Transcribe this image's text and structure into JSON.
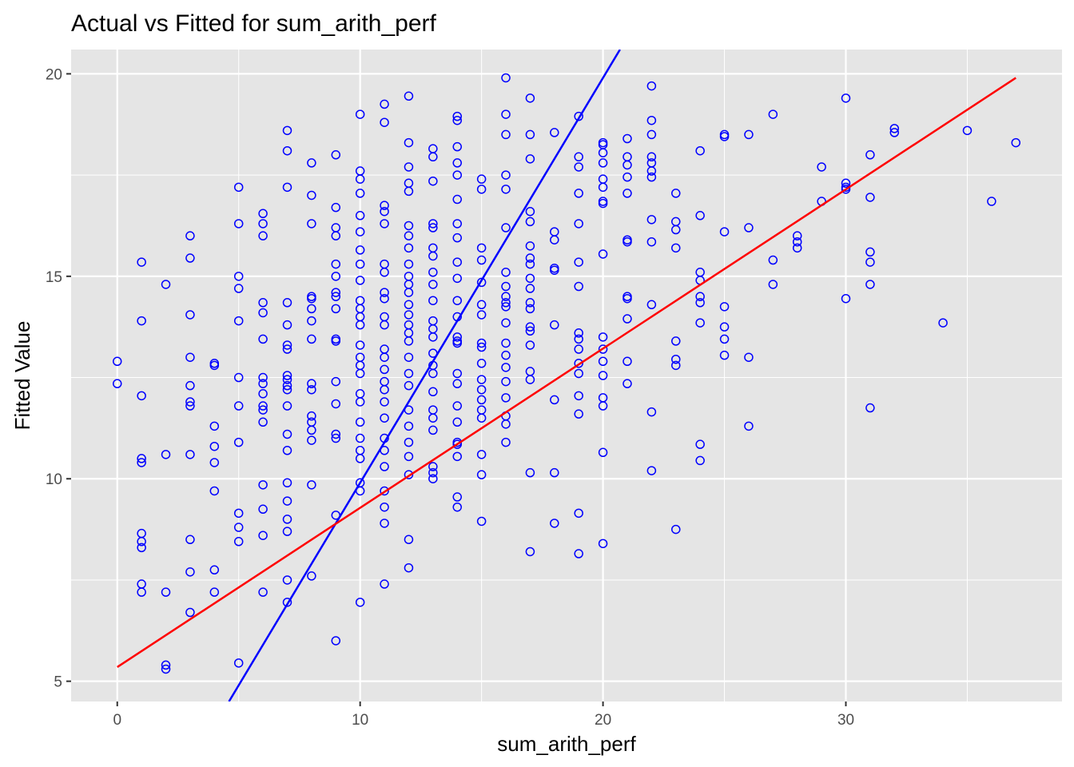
{
  "chart_data": {
    "type": "scatter",
    "title": "Actual vs Fitted for sum_arith_perf",
    "xlabel": "sum_arith_perf",
    "ylabel": "Fitted Value",
    "xlim": [
      -1.9,
      38.9
    ],
    "ylim": [
      4.5,
      20.6
    ],
    "x_ticks": [
      0,
      10,
      20,
      30
    ],
    "y_ticks": [
      5,
      10,
      15,
      20
    ],
    "grid": true,
    "panel_background": "#e5e5e5",
    "grid_color": "#ffffff",
    "point_color": "#0000ff",
    "points": [
      [
        0,
        12.9
      ],
      [
        0,
        12.35
      ],
      [
        1,
        15.35
      ],
      [
        1,
        13.9
      ],
      [
        1,
        12.05
      ],
      [
        1,
        10.5
      ],
      [
        1,
        10.4
      ],
      [
        1,
        8.65
      ],
      [
        1,
        8.45
      ],
      [
        1,
        8.3
      ],
      [
        1,
        7.4
      ],
      [
        1,
        7.2
      ],
      [
        2,
        14.8
      ],
      [
        2,
        10.6
      ],
      [
        2,
        7.2
      ],
      [
        2,
        5.4
      ],
      [
        2,
        5.3
      ],
      [
        3,
        16.0
      ],
      [
        3,
        15.45
      ],
      [
        3,
        14.05
      ],
      [
        3,
        13.0
      ],
      [
        3,
        12.3
      ],
      [
        3,
        11.9
      ],
      [
        3,
        11.8
      ],
      [
        3,
        10.6
      ],
      [
        3,
        8.5
      ],
      [
        3,
        7.7
      ],
      [
        3,
        6.7
      ],
      [
        4,
        12.85
      ],
      [
        4,
        12.8
      ],
      [
        4,
        11.3
      ],
      [
        4,
        10.8
      ],
      [
        4,
        10.4
      ],
      [
        4,
        9.7
      ],
      [
        4,
        7.75
      ],
      [
        4,
        7.2
      ],
      [
        5,
        17.2
      ],
      [
        5,
        16.3
      ],
      [
        5,
        15.0
      ],
      [
        5,
        14.7
      ],
      [
        5,
        13.9
      ],
      [
        5,
        12.5
      ],
      [
        5,
        11.8
      ],
      [
        5,
        10.9
      ],
      [
        5,
        9.15
      ],
      [
        5,
        8.8
      ],
      [
        5,
        8.45
      ],
      [
        5,
        5.45
      ],
      [
        6,
        16.55
      ],
      [
        6,
        16.3
      ],
      [
        6,
        16.0
      ],
      [
        6,
        14.35
      ],
      [
        6,
        14.1
      ],
      [
        6,
        13.45
      ],
      [
        6,
        12.5
      ],
      [
        6,
        12.35
      ],
      [
        6,
        12.1
      ],
      [
        6,
        11.8
      ],
      [
        6,
        11.7
      ],
      [
        6,
        11.4
      ],
      [
        6,
        9.85
      ],
      [
        6,
        9.25
      ],
      [
        6,
        8.6
      ],
      [
        6,
        7.2
      ],
      [
        7,
        18.6
      ],
      [
        7,
        18.1
      ],
      [
        7,
        17.2
      ],
      [
        7,
        14.35
      ],
      [
        7,
        13.8
      ],
      [
        7,
        13.3
      ],
      [
        7,
        13.2
      ],
      [
        7,
        12.55
      ],
      [
        7,
        12.45
      ],
      [
        7,
        12.3
      ],
      [
        7,
        12.2
      ],
      [
        7,
        11.8
      ],
      [
        7,
        11.1
      ],
      [
        7,
        10.7
      ],
      [
        7,
        9.9
      ],
      [
        7,
        9.45
      ],
      [
        7,
        9.0
      ],
      [
        7,
        8.7
      ],
      [
        7,
        7.5
      ],
      [
        7,
        6.95
      ],
      [
        8,
        17.8
      ],
      [
        8,
        17.0
      ],
      [
        8,
        16.3
      ],
      [
        8,
        14.5
      ],
      [
        8,
        14.45
      ],
      [
        8,
        14.2
      ],
      [
        8,
        13.9
      ],
      [
        8,
        13.45
      ],
      [
        8,
        12.35
      ],
      [
        8,
        12.2
      ],
      [
        8,
        11.55
      ],
      [
        8,
        11.4
      ],
      [
        8,
        11.2
      ],
      [
        8,
        10.95
      ],
      [
        8,
        9.85
      ],
      [
        8,
        7.6
      ],
      [
        9,
        18.0
      ],
      [
        9,
        16.7
      ],
      [
        9,
        16.2
      ],
      [
        9,
        16.0
      ],
      [
        9,
        15.3
      ],
      [
        9,
        15.0
      ],
      [
        9,
        14.6
      ],
      [
        9,
        14.5
      ],
      [
        9,
        14.2
      ],
      [
        9,
        13.45
      ],
      [
        9,
        13.4
      ],
      [
        9,
        12.4
      ],
      [
        9,
        11.85
      ],
      [
        9,
        11.1
      ],
      [
        9,
        11.0
      ],
      [
        9,
        9.1
      ],
      [
        9,
        6.0
      ],
      [
        10,
        19.0
      ],
      [
        10,
        17.6
      ],
      [
        10,
        17.4
      ],
      [
        10,
        17.05
      ],
      [
        10,
        16.5
      ],
      [
        10,
        16.1
      ],
      [
        10,
        15.65
      ],
      [
        10,
        15.3
      ],
      [
        10,
        14.9
      ],
      [
        10,
        14.4
      ],
      [
        10,
        14.2
      ],
      [
        10,
        14.0
      ],
      [
        10,
        13.8
      ],
      [
        10,
        13.3
      ],
      [
        10,
        13.0
      ],
      [
        10,
        12.8
      ],
      [
        10,
        12.6
      ],
      [
        10,
        12.1
      ],
      [
        10,
        11.9
      ],
      [
        10,
        11.4
      ],
      [
        10,
        11.0
      ],
      [
        10,
        10.7
      ],
      [
        10,
        10.5
      ],
      [
        10,
        9.9
      ],
      [
        10,
        9.7
      ],
      [
        10,
        6.95
      ],
      [
        11,
        19.25
      ],
      [
        11,
        18.8
      ],
      [
        11,
        16.75
      ],
      [
        11,
        16.6
      ],
      [
        11,
        16.3
      ],
      [
        11,
        15.3
      ],
      [
        11,
        15.1
      ],
      [
        11,
        14.6
      ],
      [
        11,
        14.45
      ],
      [
        11,
        14.0
      ],
      [
        11,
        13.8
      ],
      [
        11,
        13.2
      ],
      [
        11,
        13.0
      ],
      [
        11,
        12.7
      ],
      [
        11,
        12.4
      ],
      [
        11,
        12.2
      ],
      [
        11,
        11.9
      ],
      [
        11,
        11.5
      ],
      [
        11,
        11.0
      ],
      [
        11,
        10.7
      ],
      [
        11,
        10.3
      ],
      [
        11,
        9.7
      ],
      [
        11,
        9.3
      ],
      [
        11,
        8.9
      ],
      [
        11,
        7.4
      ],
      [
        12,
        19.45
      ],
      [
        12,
        18.3
      ],
      [
        12,
        17.7
      ],
      [
        12,
        17.3
      ],
      [
        12,
        17.1
      ],
      [
        12,
        16.25
      ],
      [
        12,
        16.0
      ],
      [
        12,
        15.7
      ],
      [
        12,
        15.3
      ],
      [
        12,
        15.0
      ],
      [
        12,
        14.8
      ],
      [
        12,
        14.6
      ],
      [
        12,
        14.3
      ],
      [
        12,
        14.05
      ],
      [
        12,
        13.8
      ],
      [
        12,
        13.6
      ],
      [
        12,
        13.4
      ],
      [
        12,
        13.0
      ],
      [
        12,
        12.6
      ],
      [
        12,
        12.3
      ],
      [
        12,
        11.7
      ],
      [
        12,
        11.3
      ],
      [
        12,
        10.9
      ],
      [
        12,
        10.55
      ],
      [
        12,
        10.1
      ],
      [
        12,
        8.5
      ],
      [
        12,
        7.8
      ],
      [
        13,
        18.15
      ],
      [
        13,
        17.95
      ],
      [
        13,
        17.35
      ],
      [
        13,
        16.3
      ],
      [
        13,
        16.2
      ],
      [
        13,
        15.7
      ],
      [
        13,
        15.5
      ],
      [
        13,
        15.1
      ],
      [
        13,
        14.8
      ],
      [
        13,
        14.4
      ],
      [
        13,
        13.9
      ],
      [
        13,
        13.7
      ],
      [
        13,
        13.5
      ],
      [
        13,
        13.1
      ],
      [
        13,
        12.8
      ],
      [
        13,
        12.6
      ],
      [
        13,
        12.15
      ],
      [
        13,
        11.7
      ],
      [
        13,
        11.5
      ],
      [
        13,
        11.2
      ],
      [
        13,
        10.3
      ],
      [
        13,
        10.15
      ],
      [
        13,
        10.0
      ],
      [
        14,
        18.95
      ],
      [
        14,
        18.85
      ],
      [
        14,
        18.2
      ],
      [
        14,
        17.8
      ],
      [
        14,
        17.5
      ],
      [
        14,
        16.9
      ],
      [
        14,
        16.3
      ],
      [
        14,
        15.95
      ],
      [
        14,
        15.35
      ],
      [
        14,
        14.95
      ],
      [
        14,
        14.4
      ],
      [
        14,
        14.0
      ],
      [
        14,
        13.5
      ],
      [
        14,
        13.4
      ],
      [
        14,
        13.35
      ],
      [
        14,
        12.6
      ],
      [
        14,
        12.35
      ],
      [
        14,
        11.8
      ],
      [
        14,
        11.4
      ],
      [
        14,
        10.9
      ],
      [
        14,
        10.85
      ],
      [
        14,
        10.55
      ],
      [
        14,
        9.55
      ],
      [
        14,
        9.3
      ],
      [
        15,
        17.4
      ],
      [
        15,
        17.15
      ],
      [
        15,
        15.7
      ],
      [
        15,
        15.4
      ],
      [
        15,
        14.85
      ],
      [
        15,
        14.3
      ],
      [
        15,
        14.05
      ],
      [
        15,
        13.35
      ],
      [
        15,
        13.25
      ],
      [
        15,
        12.85
      ],
      [
        15,
        12.45
      ],
      [
        15,
        12.2
      ],
      [
        15,
        11.95
      ],
      [
        15,
        11.7
      ],
      [
        15,
        11.5
      ],
      [
        15,
        10.6
      ],
      [
        15,
        10.1
      ],
      [
        15,
        8.95
      ],
      [
        16,
        19.9
      ],
      [
        16,
        19.0
      ],
      [
        16,
        18.5
      ],
      [
        16,
        17.5
      ],
      [
        16,
        17.15
      ],
      [
        16,
        16.2
      ],
      [
        16,
        15.1
      ],
      [
        16,
        14.75
      ],
      [
        16,
        14.5
      ],
      [
        16,
        14.35
      ],
      [
        16,
        14.25
      ],
      [
        16,
        13.85
      ],
      [
        16,
        13.35
      ],
      [
        16,
        13.05
      ],
      [
        16,
        12.75
      ],
      [
        16,
        12.4
      ],
      [
        16,
        12.0
      ],
      [
        16,
        11.55
      ],
      [
        16,
        11.35
      ],
      [
        16,
        10.9
      ],
      [
        17,
        19.4
      ],
      [
        17,
        18.5
      ],
      [
        17,
        17.9
      ],
      [
        17,
        16.6
      ],
      [
        17,
        16.35
      ],
      [
        17,
        15.75
      ],
      [
        17,
        15.45
      ],
      [
        17,
        15.3
      ],
      [
        17,
        14.95
      ],
      [
        17,
        14.7
      ],
      [
        17,
        14.35
      ],
      [
        17,
        14.2
      ],
      [
        17,
        13.75
      ],
      [
        17,
        13.65
      ],
      [
        17,
        13.3
      ],
      [
        17,
        12.65
      ],
      [
        17,
        12.45
      ],
      [
        17,
        10.15
      ],
      [
        17,
        8.2
      ],
      [
        18,
        18.55
      ],
      [
        18,
        16.1
      ],
      [
        18,
        15.9
      ],
      [
        18,
        15.2
      ],
      [
        18,
        15.15
      ],
      [
        18,
        13.8
      ],
      [
        18,
        11.95
      ],
      [
        18,
        10.15
      ],
      [
        18,
        8.9
      ],
      [
        19,
        18.95
      ],
      [
        19,
        17.95
      ],
      [
        19,
        17.7
      ],
      [
        19,
        17.05
      ],
      [
        19,
        16.3
      ],
      [
        19,
        15.35
      ],
      [
        19,
        14.75
      ],
      [
        19,
        13.6
      ],
      [
        19,
        13.45
      ],
      [
        19,
        13.2
      ],
      [
        19,
        12.85
      ],
      [
        19,
        12.6
      ],
      [
        19,
        12.05
      ],
      [
        19,
        11.6
      ],
      [
        19,
        9.15
      ],
      [
        19,
        8.15
      ],
      [
        20,
        18.3
      ],
      [
        20,
        18.25
      ],
      [
        20,
        18.05
      ],
      [
        20,
        17.8
      ],
      [
        20,
        17.4
      ],
      [
        20,
        17.2
      ],
      [
        20,
        16.85
      ],
      [
        20,
        16.8
      ],
      [
        20,
        15.55
      ],
      [
        20,
        13.5
      ],
      [
        20,
        13.2
      ],
      [
        20,
        12.9
      ],
      [
        20,
        12.55
      ],
      [
        20,
        12.0
      ],
      [
        20,
        11.8
      ],
      [
        20,
        10.65
      ],
      [
        20,
        8.4
      ],
      [
        21,
        18.4
      ],
      [
        21,
        17.95
      ],
      [
        21,
        17.75
      ],
      [
        21,
        17.45
      ],
      [
        21,
        17.05
      ],
      [
        21,
        15.9
      ],
      [
        21,
        15.85
      ],
      [
        21,
        14.5
      ],
      [
        21,
        14.45
      ],
      [
        21,
        13.95
      ],
      [
        21,
        12.9
      ],
      [
        21,
        12.35
      ],
      [
        22,
        19.7
      ],
      [
        22,
        18.85
      ],
      [
        22,
        18.5
      ],
      [
        22,
        17.95
      ],
      [
        22,
        17.8
      ],
      [
        22,
        17.6
      ],
      [
        22,
        17.45
      ],
      [
        22,
        16.4
      ],
      [
        22,
        15.85
      ],
      [
        22,
        14.3
      ],
      [
        22,
        11.65
      ],
      [
        22,
        10.2
      ],
      [
        23,
        17.05
      ],
      [
        23,
        16.35
      ],
      [
        23,
        16.15
      ],
      [
        23,
        15.7
      ],
      [
        23,
        13.4
      ],
      [
        23,
        12.95
      ],
      [
        23,
        12.8
      ],
      [
        23,
        8.75
      ],
      [
        24,
        18.1
      ],
      [
        24,
        16.5
      ],
      [
        24,
        15.1
      ],
      [
        24,
        14.9
      ],
      [
        24,
        14.5
      ],
      [
        24,
        14.35
      ],
      [
        24,
        13.85
      ],
      [
        24,
        10.85
      ],
      [
        24,
        10.45
      ],
      [
        25,
        18.5
      ],
      [
        25,
        18.45
      ],
      [
        25,
        16.1
      ],
      [
        25,
        14.25
      ],
      [
        25,
        13.75
      ],
      [
        25,
        13.45
      ],
      [
        25,
        13.05
      ],
      [
        26,
        18.5
      ],
      [
        26,
        16.2
      ],
      [
        26,
        13.0
      ],
      [
        26,
        11.3
      ],
      [
        27,
        19.0
      ],
      [
        27,
        15.4
      ],
      [
        27,
        14.8
      ],
      [
        28,
        16.0
      ],
      [
        28,
        15.85
      ],
      [
        28,
        15.7
      ],
      [
        29,
        17.7
      ],
      [
        29,
        16.85
      ],
      [
        30,
        19.4
      ],
      [
        30,
        17.3
      ],
      [
        30,
        17.2
      ],
      [
        30,
        17.15
      ],
      [
        30,
        14.45
      ],
      [
        31,
        18.0
      ],
      [
        31,
        16.95
      ],
      [
        31,
        15.6
      ],
      [
        31,
        15.35
      ],
      [
        31,
        14.8
      ],
      [
        31,
        11.75
      ],
      [
        32,
        18.65
      ],
      [
        32,
        18.55
      ],
      [
        34,
        13.85
      ],
      [
        35,
        18.6
      ],
      [
        36,
        16.85
      ],
      [
        37,
        18.3
      ]
    ],
    "lines": [
      {
        "color": "#0000ff",
        "x": [
          4.6,
          20.7
        ],
        "y": [
          4.5,
          20.6
        ]
      },
      {
        "color": "#ff0000",
        "x": [
          0,
          37
        ],
        "y": [
          5.35,
          19.9
        ]
      }
    ]
  }
}
